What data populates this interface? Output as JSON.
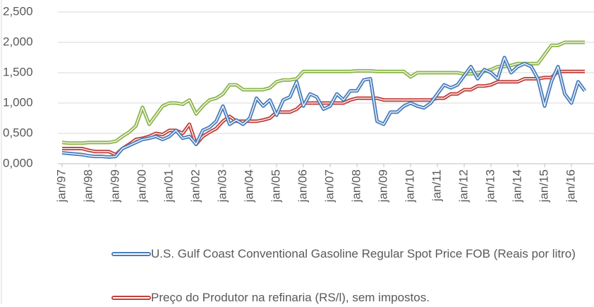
{
  "chart_data": {
    "type": "line",
    "categories": [
      "jan/97",
      null,
      null,
      null,
      "jan/98",
      null,
      null,
      null,
      "jan/99",
      null,
      null,
      null,
      "jan/00",
      null,
      null,
      null,
      "jan/01",
      null,
      null,
      null,
      "jan/02",
      null,
      null,
      null,
      "jan/03",
      null,
      null,
      null,
      "jan/04",
      null,
      null,
      null,
      "jan/05",
      null,
      null,
      null,
      "jan/06",
      null,
      null,
      null,
      "jan/07",
      null,
      null,
      null,
      "jan/08",
      null,
      null,
      null,
      "jan/09",
      null,
      null,
      null,
      "jan/10",
      null,
      null,
      null,
      "jan/11",
      null,
      null,
      null,
      "jan/12",
      null,
      null,
      null,
      "jan/13",
      null,
      null,
      null,
      "jan/14",
      null,
      null,
      null,
      "jan/15",
      null,
      null,
      null,
      "jan/16",
      null,
      null
    ],
    "series": [
      {
        "color": "#8db54b",
        "values": [
          0.35,
          0.34,
          0.34,
          0.34,
          0.35,
          0.35,
          0.35,
          0.35,
          0.37,
          0.45,
          0.52,
          0.62,
          0.93,
          0.65,
          0.8,
          0.95,
          1.0,
          1.0,
          0.98,
          1.05,
          0.82,
          0.95,
          1.05,
          1.08,
          1.15,
          1.3,
          1.3,
          1.22,
          1.22,
          1.22,
          1.22,
          1.25,
          1.35,
          1.38,
          1.38,
          1.4,
          1.52,
          1.52,
          1.52,
          1.52,
          1.52,
          1.52,
          1.52,
          1.52,
          1.53,
          1.53,
          1.53,
          1.52,
          1.52,
          1.52,
          1.52,
          1.52,
          1.43,
          1.5,
          1.5,
          1.5,
          1.5,
          1.5,
          1.5,
          1.5,
          1.48,
          1.48,
          1.5,
          1.52,
          1.55,
          1.6,
          1.6,
          1.62,
          1.65,
          1.65,
          1.65,
          1.65,
          1.8,
          1.95,
          1.95,
          2.0,
          2.0,
          2.0,
          2.0
        ]
      },
      {
        "name": "Preço do Produtor na refinaria (RS/l), sem impostos.",
        "color": "#c0403c",
        "values": [
          0.25,
          0.25,
          0.25,
          0.25,
          0.22,
          0.2,
          0.2,
          0.2,
          0.15,
          0.25,
          0.32,
          0.4,
          0.42,
          0.45,
          0.5,
          0.48,
          0.55,
          0.55,
          0.5,
          0.65,
          0.32,
          0.45,
          0.52,
          0.58,
          0.7,
          0.78,
          0.7,
          0.7,
          0.7,
          0.7,
          0.72,
          0.75,
          0.85,
          0.85,
          0.85,
          0.9,
          1.0,
          1.0,
          1.0,
          1.0,
          1.0,
          1.0,
          1.0,
          1.05,
          1.08,
          1.08,
          1.08,
          1.08,
          1.05,
          1.05,
          1.05,
          1.05,
          1.05,
          1.05,
          1.05,
          1.05,
          1.08,
          1.08,
          1.15,
          1.15,
          1.22,
          1.22,
          1.28,
          1.28,
          1.3,
          1.35,
          1.35,
          1.35,
          1.35,
          1.4,
          1.4,
          1.4,
          1.42,
          1.42,
          1.52,
          1.52,
          1.52,
          1.52,
          1.52
        ]
      },
      {
        "name": "U.S. Gulf Coast Conventional Gasoline Regular Spot Price FOB (Reais por litro)",
        "color": "#4a7ebb",
        "values": [
          0.18,
          0.17,
          0.16,
          0.15,
          0.13,
          0.12,
          0.12,
          0.11,
          0.12,
          0.25,
          0.3,
          0.35,
          0.4,
          0.42,
          0.45,
          0.4,
          0.45,
          0.55,
          0.42,
          0.45,
          0.32,
          0.55,
          0.6,
          0.7,
          0.95,
          0.65,
          0.72,
          0.65,
          0.75,
          1.08,
          0.95,
          1.05,
          0.8,
          1.05,
          1.1,
          1.35,
          0.95,
          1.15,
          1.1,
          0.9,
          0.95,
          1.15,
          1.05,
          1.2,
          1.2,
          1.38,
          1.4,
          0.7,
          0.65,
          0.85,
          0.85,
          0.95,
          1.0,
          0.95,
          0.92,
          1.0,
          1.15,
          1.3,
          1.25,
          1.3,
          1.45,
          1.6,
          1.4,
          1.55,
          1.5,
          1.4,
          1.75,
          1.5,
          1.6,
          1.65,
          1.6,
          1.4,
          0.95,
          1.35,
          1.6,
          1.15,
          1.0,
          1.35,
          1.2
        ]
      }
    ],
    "ylim": [
      0,
      2.5
    ],
    "yticks": [
      {
        "value": 0,
        "label": "0,000"
      },
      {
        "value": 0.5,
        "label": "0,500"
      },
      {
        "value": 1,
        "label": "1,000"
      },
      {
        "value": 1.5,
        "label": "1,500"
      },
      {
        "value": 2,
        "label": "2,000"
      },
      {
        "value": 2.5,
        "label": "2,500"
      }
    ],
    "grid": true
  }
}
